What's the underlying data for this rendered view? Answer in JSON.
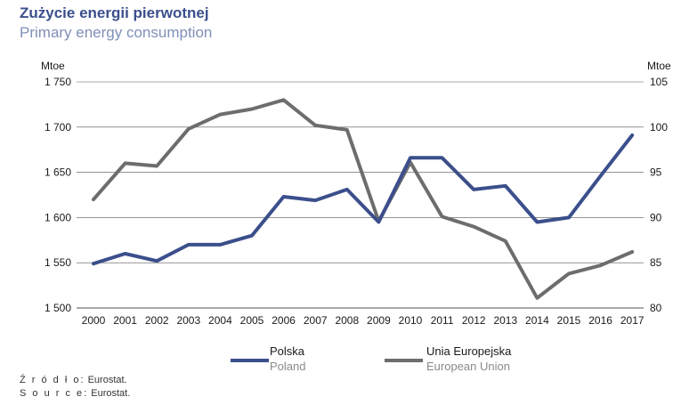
{
  "header": {
    "title": "Zużycie energii pierwotnej",
    "subtitle": "Primary energy consumption"
  },
  "source": {
    "pl_label": "Ź r ó d ł o:",
    "pl_value": " Eurostat.",
    "en_label": "S o u r c e:",
    "en_value": " Eurostat."
  },
  "colors": {
    "poland": "#3b4f8c",
    "eu": "#6d6d6d",
    "grid": "#555555"
  },
  "chart_data": {
    "type": "line",
    "title": "Zużycie energii pierwotnej",
    "subtitle": "Primary energy consumption",
    "ylabel_left": "Mtoe",
    "ylabel_right": "Mtoe",
    "x": [
      "2000",
      "2001",
      "2002",
      "2003",
      "2004",
      "2005",
      "2006",
      "2007",
      "2008",
      "2009",
      "2010",
      "2011",
      "2012",
      "2013",
      "2014",
      "2015",
      "2016",
      "2017"
    ],
    "ylim_left": [
      1500,
      1750
    ],
    "yticks_left": [
      1500,
      1550,
      1600,
      1650,
      1700,
      1750
    ],
    "ytick_labels_left": [
      "1 500",
      "1 550",
      "1 600",
      "1 650",
      "1 700",
      "1 750"
    ],
    "ylim_right": [
      80,
      105
    ],
    "yticks_right": [
      80,
      85,
      90,
      95,
      100,
      105
    ],
    "ytick_labels_right": [
      "80",
      "85",
      "90",
      "95",
      "100",
      "105"
    ],
    "grid": true,
    "legend_position": "bottom",
    "series": [
      {
        "name": "Polska",
        "name_en": "Poland",
        "axis": "right",
        "color": "#3b4f8c",
        "values": [
          84.9,
          86.0,
          85.2,
          87.0,
          87.0,
          88.0,
          92.3,
          91.9,
          93.1,
          89.5,
          96.6,
          96.6,
          93.1,
          93.5,
          89.5,
          90.0,
          94.6,
          99.1
        ]
      },
      {
        "name": "Unia Europejska",
        "name_en": "European Union",
        "axis": "left",
        "color": "#6d6d6d",
        "values": [
          1620,
          1660,
          1657,
          1698,
          1714,
          1720,
          1730,
          1702,
          1697,
          1596,
          1661,
          1601,
          1590,
          1574,
          1511,
          1538,
          1547,
          1562
        ]
      }
    ]
  }
}
